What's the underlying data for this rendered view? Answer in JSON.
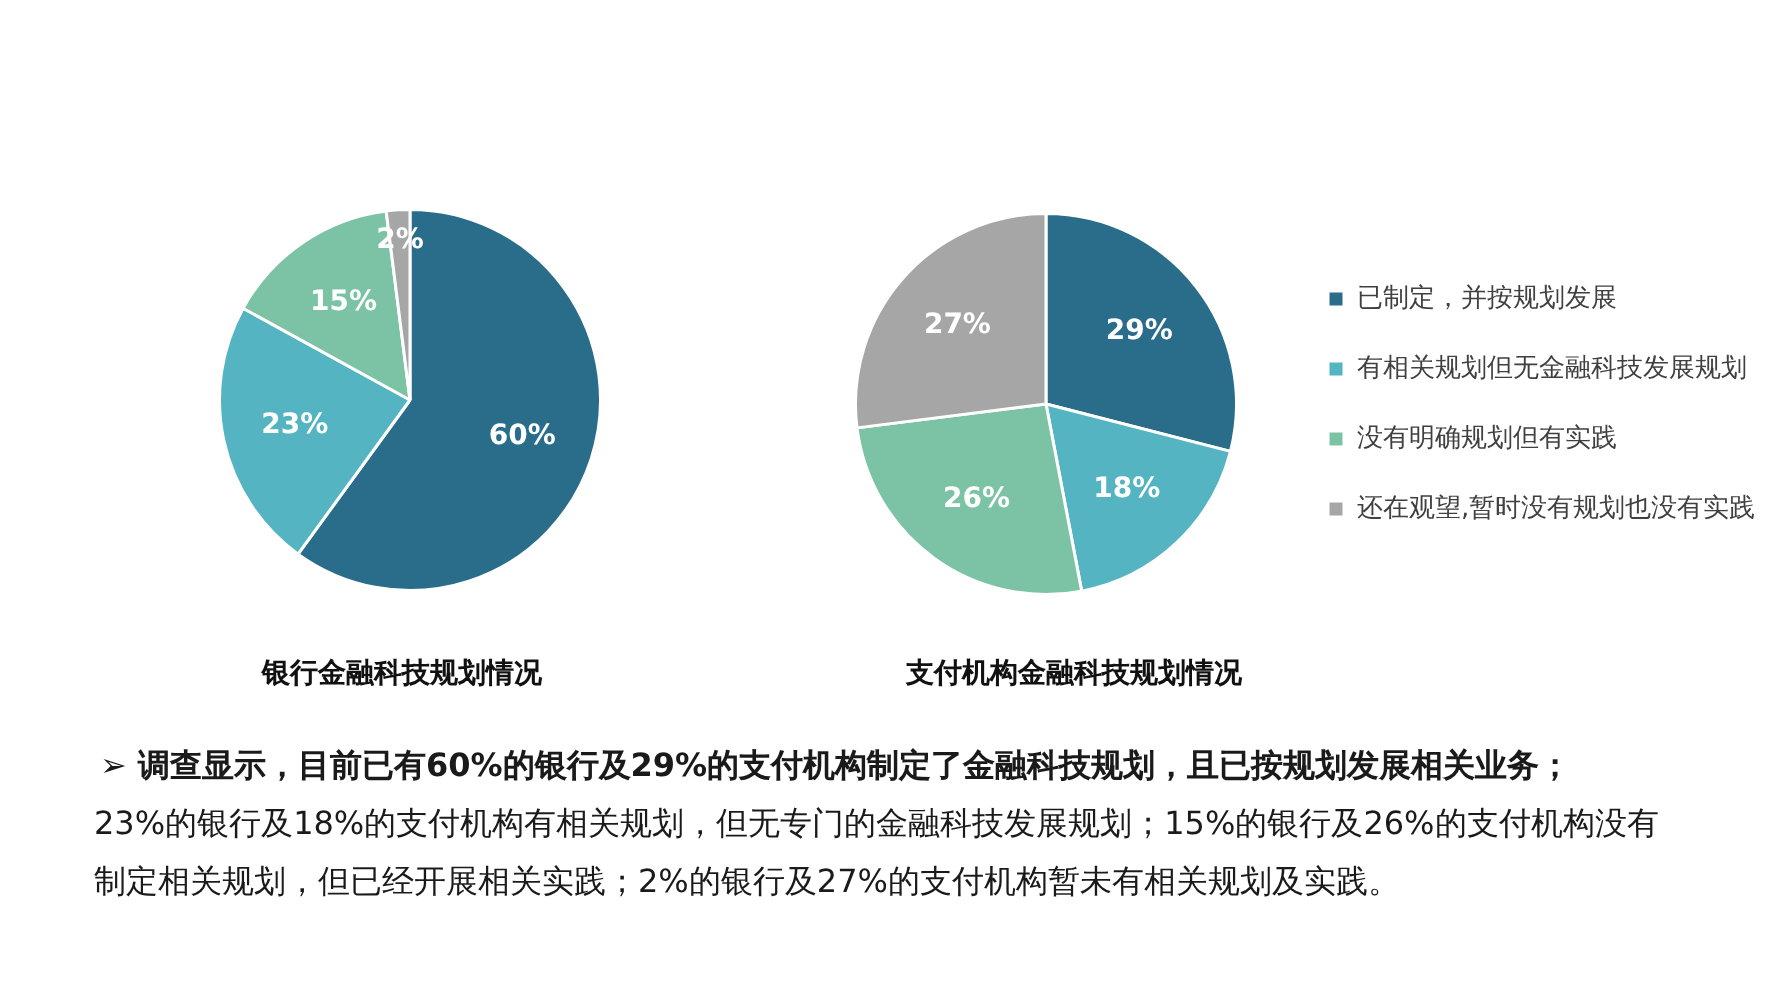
{
  "chart_data": [
    {
      "type": "pie",
      "title": "银行金融科技规划情况",
      "categories": [
        null,
        null,
        null,
        null
      ],
      "values": [
        60,
        23,
        15,
        2
      ],
      "colors": [
        "#2a6d8b",
        "#55b4c1",
        "#7cc3a5",
        "#a6a6a6"
      ],
      "value_labels": [
        "60%",
        "23%",
        "15%",
        "2%"
      ],
      "annotations": [
        "➢ 调查显示，目前已有60%的银行及29%的支付机构制定了金融科技规划，且已按规划发展相关业务；",
        "23%的银行及18%的支付机构有相关规划，但无专门的金融科技发展规划；15%的银行及26%的支付机构没有制定相关规划，但已经开展相关实践；2%的银行及27%的支付机构暂未有相关规划及实践。"
      ]
    },
    {
      "type": "pie",
      "title": "支付机构金融科技规划情况",
      "categories": [
        "已制定，并按规划发展",
        "有相关规划但无金融科技发展规划",
        "没有明确规划但有实践",
        "还在观望,暂时没有规划也没有实践"
      ],
      "values": [
        29,
        18,
        26,
        27
      ],
      "colors": [
        "#2a6d8b",
        "#55b4c1",
        "#7cc3a5",
        "#a6a6a6"
      ],
      "value_labels": [
        "29%",
        "18%",
        "26%",
        "27%"
      ],
      "legend": "right"
    }
  ]
}
